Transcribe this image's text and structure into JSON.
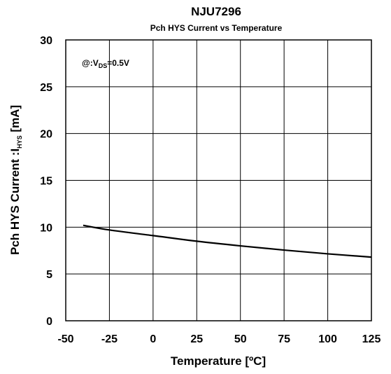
{
  "chart_data": {
    "type": "line",
    "title": "NJU7296",
    "subtitle": "Pch HYS Current vs Temperature",
    "xlabel": "Temperature  [ºC]",
    "ylabel": {
      "main": "Pch HYS Current  :I",
      "sub": "HYS",
      "unit": " [mA]"
    },
    "annotation": {
      "prefix": "@:V",
      "sub": "DS",
      "suffix": "=0.5V"
    },
    "xlim": [
      -50,
      125
    ],
    "ylim": [
      0,
      30
    ],
    "x_ticks": [
      -50,
      -25,
      0,
      25,
      50,
      75,
      100,
      125
    ],
    "x_tick_labels": [
      "-50",
      "-25",
      "0",
      "25",
      "50",
      "75",
      "100",
      "125"
    ],
    "y_ticks": [
      0,
      5,
      10,
      15,
      20,
      25,
      30
    ],
    "y_tick_labels": [
      "0",
      "5",
      "10",
      "15",
      "20",
      "25",
      "30"
    ],
    "grid": true,
    "series": [
      {
        "color": "#000000",
        "x": [
          -40,
          -25,
          0,
          25,
          50,
          75,
          100,
          125
        ],
        "y": [
          10.2,
          9.7,
          9.1,
          8.5,
          8.0,
          7.55,
          7.15,
          6.8
        ]
      }
    ]
  }
}
